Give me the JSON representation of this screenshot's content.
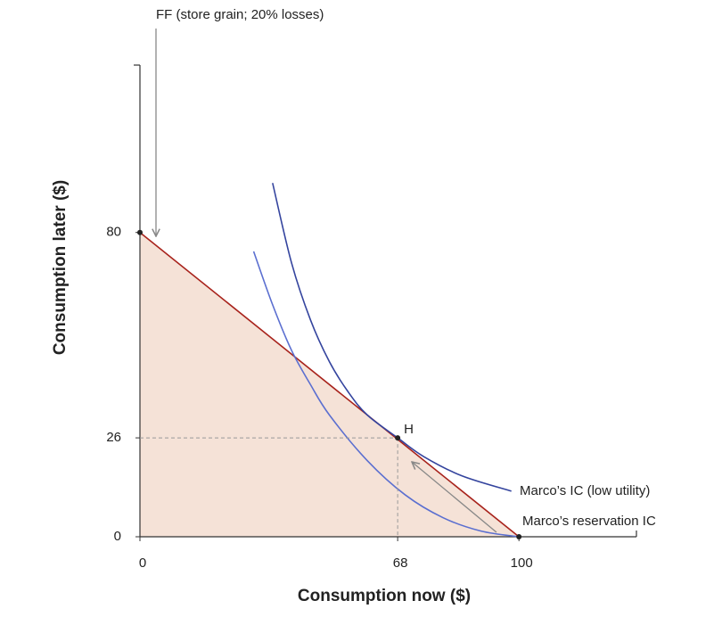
{
  "chart_data": {
    "type": "line",
    "xlabel": "Consumption now ($)",
    "ylabel": "Consumption later ($)",
    "xlim": [
      0,
      131
    ],
    "ylim": [
      0,
      124
    ],
    "xticks": [
      0,
      68,
      100
    ],
    "yticks": [
      0,
      26,
      80
    ],
    "series": [
      {
        "name": "FF (store grain; 20% losses)",
        "color": "#a8231c",
        "fill": "#f5e2d7",
        "x": [
          0,
          100
        ],
        "values": [
          80,
          0
        ]
      },
      {
        "name": "Marco’s IC (low utility)",
        "color": "#34449e",
        "x": [
          35,
          40,
          45,
          50,
          55,
          60,
          68,
          75,
          85,
          98
        ],
        "values": [
          93,
          72,
          57,
          46,
          38,
          32,
          26,
          21,
          16,
          12
        ]
      },
      {
        "name": "Marco’s reservation IC",
        "color": "#5b6fd0",
        "x": [
          30,
          35,
          40,
          45,
          50,
          60,
          70,
          80,
          90,
          100
        ],
        "values": [
          75,
          61,
          49,
          40,
          32,
          20,
          11,
          5,
          1.5,
          0
        ]
      }
    ],
    "points": {
      "labels": [
        null,
        "H",
        null
      ],
      "x": [
        0,
        68,
        100
      ],
      "values": [
        80,
        26,
        0
      ],
      "color": "#222"
    }
  }
}
